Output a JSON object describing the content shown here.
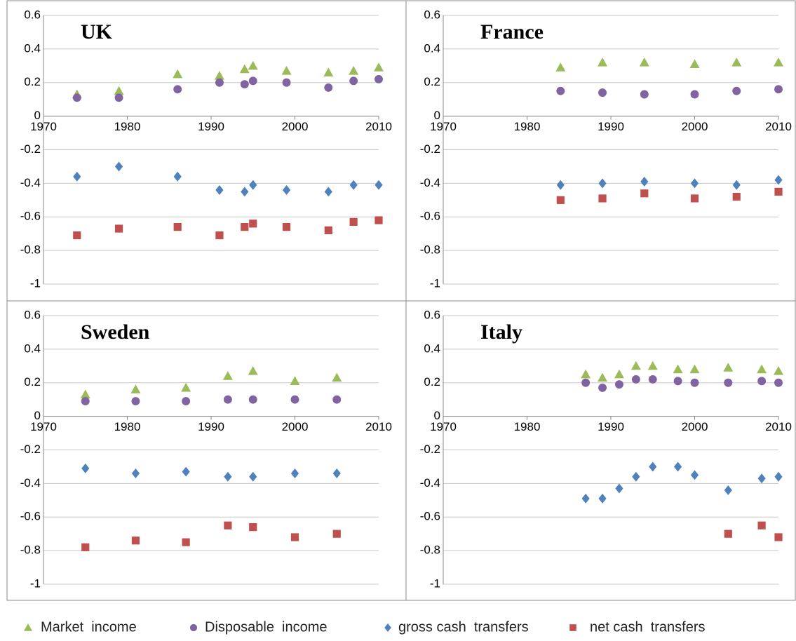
{
  "chart_data": [
    {
      "type": "scatter",
      "title": "UK",
      "xlim": [
        1970,
        2010
      ],
      "ylim": [
        -1,
        0.6
      ],
      "xticks": [
        1970,
        1980,
        1990,
        2000,
        2010
      ],
      "yticks": [
        -1,
        -0.8,
        -0.6,
        -0.4,
        -0.2,
        0,
        0.2,
        0.4,
        0.6
      ],
      "grid": true,
      "x": [
        1974,
        1979,
        1986,
        1991,
        1994,
        1995,
        1999,
        2004,
        2007,
        2010
      ],
      "series": [
        {
          "name": "Market  income",
          "color": "#9bbb59",
          "marker": "triangle",
          "values": [
            0.13,
            0.15,
            0.25,
            0.24,
            0.28,
            0.3,
            0.27,
            0.26,
            0.27,
            0.29
          ]
        },
        {
          "name": "Disposable  income",
          "color": "#8064a2",
          "marker": "circle",
          "values": [
            0.11,
            0.11,
            0.16,
            0.2,
            0.19,
            0.21,
            0.2,
            0.17,
            0.21,
            0.22
          ]
        },
        {
          "name": "gross cash  transfers",
          "color": "#4f81bd",
          "marker": "diamond",
          "values": [
            -0.36,
            -0.3,
            -0.36,
            -0.44,
            -0.45,
            -0.41,
            -0.44,
            -0.45,
            -0.41,
            -0.41
          ]
        },
        {
          "name": "net cash  transfers",
          "color": "#c0504d",
          "marker": "square",
          "values": [
            -0.71,
            -0.67,
            -0.66,
            -0.71,
            -0.66,
            -0.64,
            -0.66,
            -0.68,
            -0.63,
            -0.62
          ]
        }
      ]
    },
    {
      "type": "scatter",
      "title": "France",
      "xlim": [
        1970,
        2010
      ],
      "ylim": [
        -1,
        0.6
      ],
      "xticks": [
        1970,
        1980,
        1990,
        2000,
        2010
      ],
      "yticks": [
        -1,
        -0.8,
        -0.6,
        -0.4,
        -0.2,
        0,
        0.2,
        0.4,
        0.6
      ],
      "grid": true,
      "x": [
        1984,
        1989,
        1994,
        2000,
        2005,
        2010
      ],
      "series": [
        {
          "name": "Market  income",
          "color": "#9bbb59",
          "marker": "triangle",
          "values": [
            0.29,
            0.32,
            0.32,
            0.31,
            0.32,
            0.32
          ]
        },
        {
          "name": "Disposable  income",
          "color": "#8064a2",
          "marker": "circle",
          "values": [
            0.15,
            0.14,
            0.13,
            0.13,
            0.15,
            0.16
          ]
        },
        {
          "name": "gross cash  transfers",
          "color": "#4f81bd",
          "marker": "diamond",
          "values": [
            -0.41,
            -0.4,
            -0.39,
            -0.4,
            -0.41,
            -0.38
          ]
        },
        {
          "name": "net cash  transfers",
          "color": "#c0504d",
          "marker": "square",
          "values": [
            -0.5,
            -0.49,
            -0.46,
            -0.49,
            -0.48,
            -0.45
          ]
        }
      ]
    },
    {
      "type": "scatter",
      "title": "Sweden",
      "xlim": [
        1970,
        2010
      ],
      "ylim": [
        -1,
        0.6
      ],
      "xticks": [
        1970,
        1980,
        1990,
        2000,
        2010
      ],
      "yticks": [
        -1,
        -0.8,
        -0.6,
        -0.4,
        -0.2,
        0,
        0.2,
        0.4,
        0.6
      ],
      "grid": true,
      "x": [
        1975,
        1981,
        1987,
        1992,
        1995,
        2000,
        2005
      ],
      "series": [
        {
          "name": "Market  income",
          "color": "#9bbb59",
          "marker": "triangle",
          "values": [
            0.13,
            0.16,
            0.17,
            0.24,
            0.27,
            0.21,
            0.23
          ]
        },
        {
          "name": "Disposable  income",
          "color": "#8064a2",
          "marker": "circle",
          "values": [
            0.09,
            0.09,
            0.09,
            0.1,
            0.1,
            0.1,
            0.1
          ]
        },
        {
          "name": "gross cash  transfers",
          "color": "#4f81bd",
          "marker": "diamond",
          "values": [
            -0.31,
            -0.34,
            -0.33,
            -0.36,
            -0.36,
            -0.34,
            -0.34
          ]
        },
        {
          "name": "net cash  transfers",
          "color": "#c0504d",
          "marker": "square",
          "values": [
            -0.78,
            -0.74,
            -0.75,
            -0.65,
            -0.66,
            -0.72,
            -0.7
          ]
        }
      ]
    },
    {
      "type": "scatter",
      "title": "Italy",
      "xlim": [
        1970,
        2010
      ],
      "ylim": [
        -1,
        0.6
      ],
      "xticks": [
        1970,
        1980,
        1990,
        2000,
        2010
      ],
      "yticks": [
        -1,
        -0.8,
        -0.6,
        -0.4,
        -0.2,
        0,
        0.2,
        0.4,
        0.6
      ],
      "grid": true,
      "x": [
        1987,
        1989,
        1991,
        1993,
        1995,
        1998,
        2000,
        2004,
        2008,
        2010
      ],
      "series": [
        {
          "name": "Market  income",
          "color": "#9bbb59",
          "marker": "triangle",
          "values": [
            0.25,
            0.23,
            0.25,
            0.3,
            0.3,
            0.28,
            0.28,
            0.29,
            0.28,
            0.27
          ]
        },
        {
          "name": "Disposable  income",
          "color": "#8064a2",
          "marker": "circle",
          "values": [
            0.2,
            0.17,
            0.19,
            0.22,
            0.22,
            0.21,
            0.2,
            0.2,
            0.21,
            0.2
          ]
        },
        {
          "name": "gross cash  transfers",
          "color": "#4f81bd",
          "marker": "diamond",
          "values": [
            -0.49,
            -0.49,
            -0.43,
            -0.36,
            -0.3,
            -0.3,
            -0.35,
            -0.44,
            -0.37,
            -0.36
          ]
        },
        {
          "name": "net cash  transfers",
          "color": "#c0504d",
          "marker": "square",
          "values": [
            null,
            null,
            null,
            null,
            null,
            null,
            null,
            -0.7,
            -0.65,
            -0.72
          ]
        }
      ]
    }
  ]
}
